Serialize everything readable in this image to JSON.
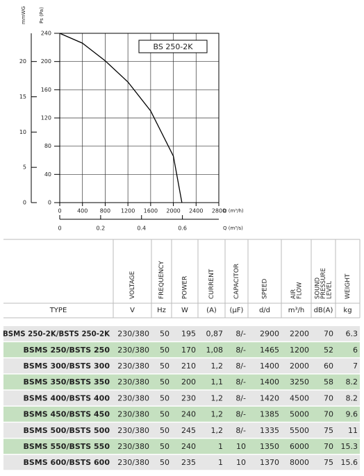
{
  "chart_data": {
    "type": "line",
    "title": "BS 250-2K",
    "x": [
      0,
      400,
      800,
      1200,
      1600,
      2000,
      2150
    ],
    "values": [
      240,
      226,
      201,
      171,
      130,
      66,
      0
    ],
    "color": "#000000",
    "xlabel": "Q (m³/h)",
    "ylabel": "Ps (Pa)",
    "xlim": [
      0,
      2800
    ],
    "xticks": [
      0,
      400,
      800,
      1200,
      1600,
      2000,
      2400,
      2800
    ],
    "ylim": [
      0,
      240
    ],
    "yticks": [
      0,
      40,
      80,
      120,
      160,
      200,
      240
    ],
    "y2label": "mmWG",
    "y2lim": [
      0,
      24
    ],
    "y2ticks": [
      0,
      5,
      10,
      15,
      20
    ],
    "x2label": "Q (m³/s)",
    "x2lim": [
      0,
      0.778
    ],
    "x2ticks": [
      0,
      0.2,
      0.4,
      0.6
    ],
    "grid": true
  },
  "table": {
    "headers": [
      "VOLTAGE",
      "FREQUENCY",
      "POWER",
      "CURRENT",
      "CAPACITOR",
      "SPEED",
      "AIR FLOW",
      "SOUND PRESSURE LEVEL",
      "WEIGHT"
    ],
    "type_header": "TYPE",
    "units": [
      "V",
      "Hz",
      "W",
      "(A)",
      "(µF)",
      "d/d",
      "m³/h",
      "dB(A)",
      "kg"
    ],
    "rows": [
      [
        "BSMS 250-2K/BSTS 250-2K",
        "230/380",
        "50",
        "195",
        "0,87",
        "8/-",
        "2900",
        "2200",
        "70",
        "6.3"
      ],
      [
        "BSMS 250/BSTS 250",
        "230/380",
        "50",
        "170",
        "1,08",
        "8/-",
        "1465",
        "1200",
        "52",
        "6"
      ],
      [
        "BSMS 300/BSTS 300",
        "230/380",
        "50",
        "210",
        "1,2",
        "8/-",
        "1400",
        "2000",
        "60",
        "7"
      ],
      [
        "BSMS 350/BSTS 350",
        "230/380",
        "50",
        "200",
        "1,1",
        "8/-",
        "1400",
        "3250",
        "58",
        "8.2"
      ],
      [
        "BSMS 400/BSTS 400",
        "230/380",
        "50",
        "230",
        "1,2",
        "8/-",
        "1420",
        "4500",
        "70",
        "8.2"
      ],
      [
        "BSMS 450/BSTS 450",
        "230/380",
        "50",
        "240",
        "1,2",
        "8/-",
        "1385",
        "5000",
        "70",
        "9.6"
      ],
      [
        "BSMS 500/BSTS 500",
        "230/380",
        "50",
        "245",
        "1,2",
        "8/-",
        "1335",
        "5500",
        "75",
        "11"
      ],
      [
        "BSMS 550/BSTS 550",
        "230/380",
        "50",
        "240",
        "1",
        "10",
        "1350",
        "6000",
        "70",
        "15.3"
      ],
      [
        "BSMS 600/BSTS 600",
        "230/380",
        "50",
        "235",
        "1",
        "10",
        "1370",
        "8000",
        "75",
        "15.6"
      ]
    ]
  }
}
